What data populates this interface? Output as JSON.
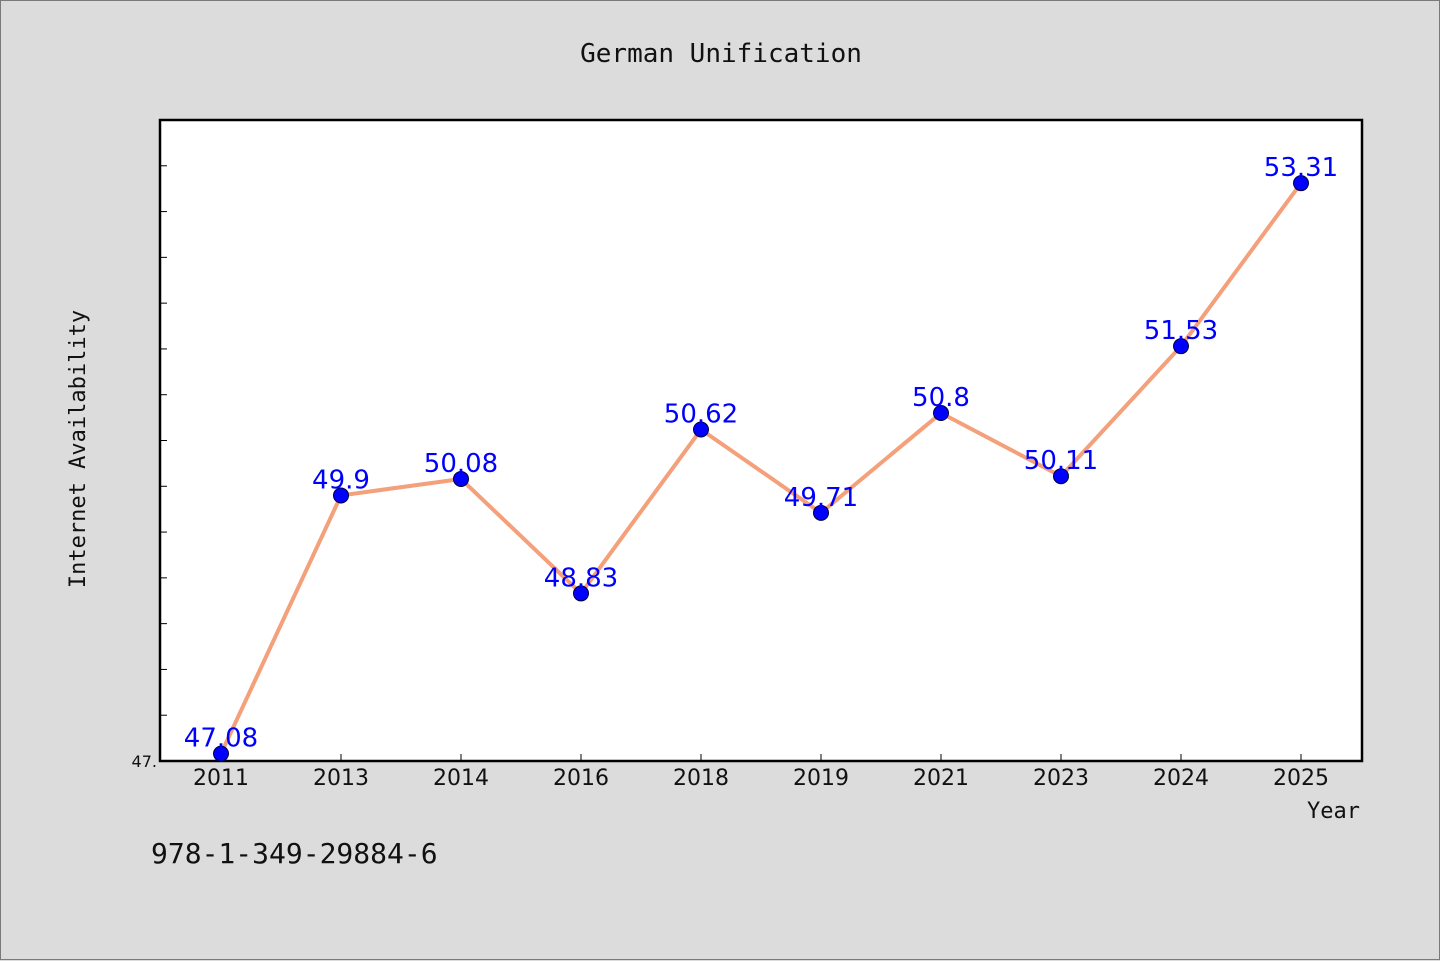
{
  "chart_data": {
    "type": "line",
    "title": "German Unification",
    "xlabel": "Year",
    "ylabel": "Internet Availability",
    "categories": [
      "2011",
      "2013",
      "2014",
      "2016",
      "2018",
      "2019",
      "2021",
      "2023",
      "2024",
      "2025"
    ],
    "values": [
      47.08,
      49.9,
      50.08,
      48.83,
      50.62,
      49.71,
      50.8,
      50.11,
      51.53,
      53.31
    ],
    "data_labels": [
      "47.08",
      "49.9",
      "50.08",
      "48.83",
      "50.62",
      "49.71",
      "50.8",
      "50.11",
      "51.53",
      "53.31"
    ],
    "ytick_labels": [
      "47."
    ],
    "ylim": [
      47.0,
      54.0
    ],
    "grid": false,
    "line_color": "#f4a07a",
    "marker_color": "#0000ff"
  },
  "footer": {
    "isbn": "978-1-349-29884-6"
  }
}
